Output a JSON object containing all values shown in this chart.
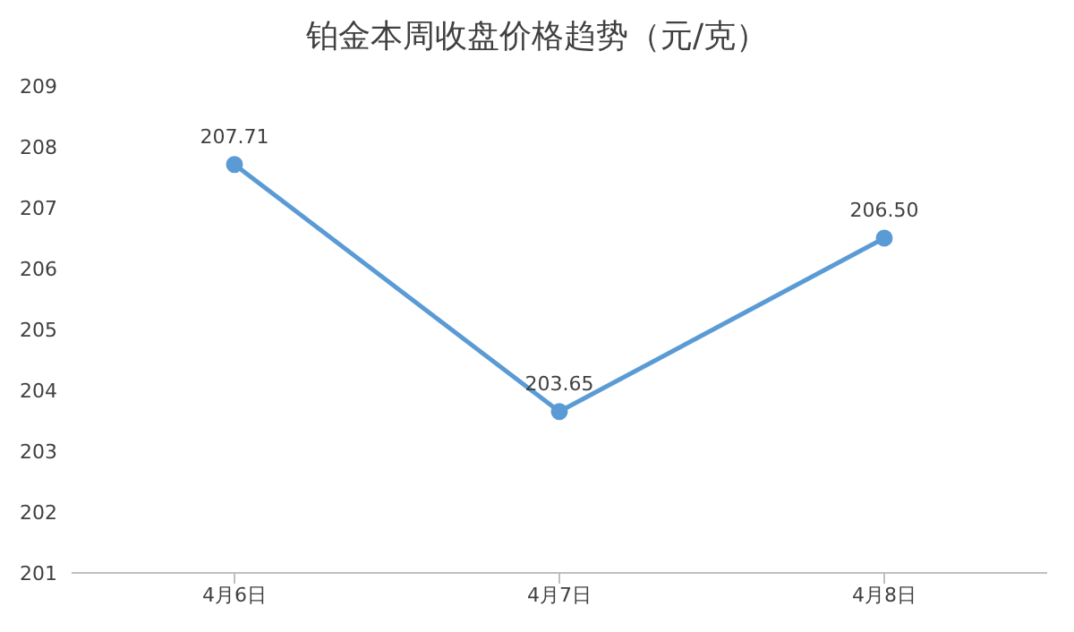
{
  "chart_data": {
    "type": "line",
    "title": "铂金本周收盘价格趋势（元/克）",
    "categories": [
      "4月6日",
      "4月7日",
      "4月8日"
    ],
    "series": [
      {
        "color": "#5b9bd5",
        "values": [
          207.71,
          203.65,
          206.5
        ],
        "value_labels": [
          "207.71",
          "203.65",
          "206.50"
        ]
      }
    ],
    "ylim": [
      201,
      209
    ],
    "yticks": [
      201,
      202,
      203,
      204,
      205,
      206,
      207,
      208,
      209
    ],
    "grid": false,
    "legend": false,
    "marker": "circle",
    "line_style": "solid"
  }
}
